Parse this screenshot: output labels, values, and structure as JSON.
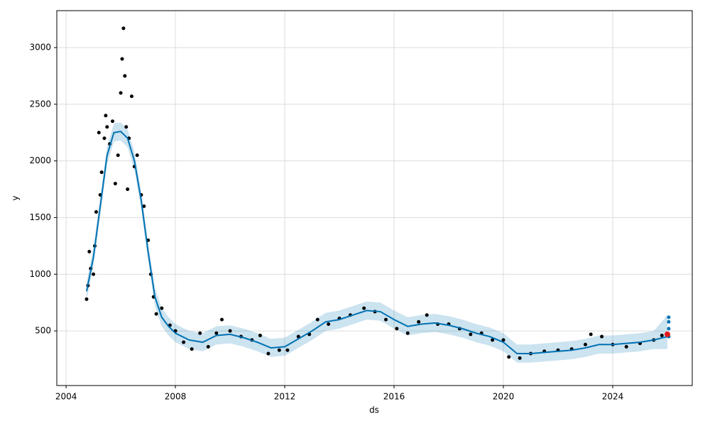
{
  "chart_data": {
    "type": "forecast",
    "xlabel": "ds",
    "ylabel": "y",
    "xlim": [
      2003.66,
      2026.91
    ],
    "ylim": [
      18,
      3326
    ],
    "xticks": [
      2004,
      2008,
      2012,
      2016,
      2020,
      2024
    ],
    "yticks": [
      500,
      1000,
      1500,
      2000,
      2500,
      3000
    ],
    "grid": true,
    "points": {
      "color": "#000000",
      "x": [
        2004.75,
        2004.8,
        2004.85,
        2004.9,
        2005.0,
        2005.05,
        2005.1,
        2005.2,
        2005.25,
        2005.3,
        2005.4,
        2005.45,
        2005.5,
        2005.6,
        2005.7,
        2005.8,
        2005.9,
        2006.0,
        2006.05,
        2006.1,
        2006.15,
        2006.2,
        2006.25,
        2006.3,
        2006.4,
        2006.5,
        2006.6,
        2006.75,
        2006.85,
        2007.0,
        2007.1,
        2007.2,
        2007.3,
        2007.5,
        2007.8,
        2008.0,
        2008.3,
        2008.6,
        2008.9,
        2009.2,
        2009.5,
        2009.7,
        2010.0,
        2010.4,
        2010.8,
        2011.1,
        2011.4,
        2011.8,
        2012.1,
        2012.5,
        2012.9,
        2013.2,
        2013.6,
        2014.0,
        2014.4,
        2014.9,
        2015.3,
        2015.7,
        2016.1,
        2016.5,
        2016.9,
        2017.2,
        2017.6,
        2018.0,
        2018.4,
        2018.8,
        2019.2,
        2019.6,
        2020.0,
        2020.2,
        2020.6,
        2021.0,
        2021.5,
        2022.0,
        2022.5,
        2023.0,
        2023.2,
        2023.6,
        2024.0,
        2024.5,
        2025.0,
        2025.5,
        2025.8
      ],
      "values": [
        780,
        900,
        1200,
        1050,
        1000,
        1250,
        1550,
        2250,
        1700,
        1900,
        2200,
        2400,
        2300,
        2150,
        2350,
        1800,
        2050,
        2600,
        2900,
        3170,
        2750,
        2300,
        1750,
        2200,
        2570,
        1950,
        2050,
        1700,
        1600,
        1300,
        1000,
        800,
        650,
        700,
        550,
        500,
        400,
        340,
        480,
        360,
        480,
        600,
        500,
        450,
        420,
        460,
        300,
        330,
        330,
        450,
        470,
        600,
        560,
        610,
        640,
        700,
        670,
        600,
        520,
        480,
        580,
        640,
        560,
        560,
        520,
        470,
        480,
        420,
        420,
        270,
        260,
        300,
        320,
        330,
        340,
        380,
        470,
        450,
        380,
        360,
        390,
        420,
        460
      ]
    },
    "forecast": {
      "color": "#0072B2",
      "band_color": "#0072B2",
      "x": [
        2004.75,
        2005.0,
        2005.25,
        2005.5,
        2005.75,
        2006.0,
        2006.25,
        2006.5,
        2006.75,
        2007.0,
        2007.25,
        2007.5,
        2007.75,
        2008.0,
        2008.5,
        2009.0,
        2009.5,
        2010.0,
        2010.5,
        2011.0,
        2011.5,
        2012.0,
        2012.5,
        2013.0,
        2013.5,
        2014.0,
        2014.5,
        2015.0,
        2015.5,
        2016.0,
        2016.5,
        2017.0,
        2017.5,
        2018.0,
        2018.5,
        2019.0,
        2019.5,
        2020.0,
        2020.5,
        2021.0,
        2021.5,
        2022.0,
        2022.5,
        2023.0,
        2023.5,
        2024.0,
        2024.5,
        2025.0,
        2025.5,
        2026.0
      ],
      "values": [
        850,
        1150,
        1600,
        2050,
        2250,
        2260,
        2200,
        2000,
        1650,
        1200,
        800,
        620,
        540,
        480,
        420,
        400,
        460,
        470,
        440,
        400,
        350,
        360,
        430,
        500,
        580,
        600,
        640,
        680,
        670,
        600,
        540,
        560,
        570,
        550,
        520,
        480,
        450,
        400,
        300,
        300,
        310,
        320,
        330,
        350,
        380,
        380,
        390,
        400,
        420,
        450
      ],
      "lower": [
        770,
        1070,
        1520,
        1970,
        2170,
        2180,
        2120,
        1920,
        1570,
        1120,
        720,
        540,
        460,
        400,
        340,
        320,
        380,
        390,
        360,
        320,
        270,
        280,
        350,
        420,
        500,
        520,
        560,
        600,
        590,
        520,
        460,
        480,
        490,
        470,
        440,
        400,
        370,
        320,
        220,
        220,
        230,
        240,
        250,
        270,
        300,
        300,
        310,
        320,
        340,
        340
      ],
      "upper": [
        930,
        1230,
        1680,
        2130,
        2330,
        2340,
        2280,
        2080,
        1730,
        1280,
        880,
        700,
        620,
        560,
        500,
        480,
        540,
        550,
        520,
        480,
        430,
        440,
        510,
        580,
        660,
        680,
        720,
        760,
        750,
        680,
        620,
        640,
        650,
        630,
        600,
        560,
        530,
        480,
        380,
        380,
        390,
        400,
        410,
        430,
        460,
        460,
        470,
        480,
        500,
        640
      ]
    },
    "last_point": {
      "color": "#e41a1c",
      "x": [
        2026.0
      ],
      "values": [
        470
      ]
    },
    "future_points": {
      "color": "#0072B2",
      "x": [
        2026.05,
        2026.05,
        2026.05,
        2026.05
      ],
      "values": [
        450,
        520,
        580,
        620
      ]
    }
  }
}
